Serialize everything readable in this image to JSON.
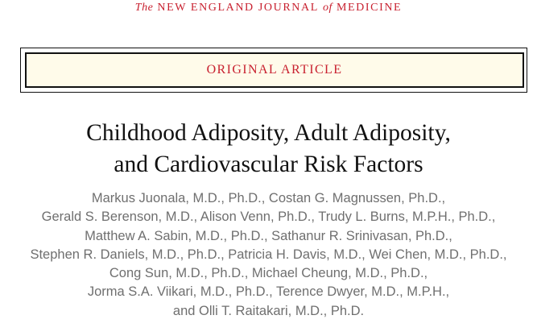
{
  "journal": {
    "the": "The",
    "name_part1": "NEW ENGLAND JOURNAL",
    "of": "of",
    "name_part2": "MEDICINE"
  },
  "article_type": "ORIGINAL ARTICLE",
  "title_lines": [
    "Childhood Adiposity, Adult Adiposity,",
    "and Cardiovascular Risk Factors"
  ],
  "author_lines": [
    "Markus Juonala, M.D., Ph.D., Costan G. Magnussen, Ph.D.,",
    "Gerald S. Berenson, M.D., Alison Venn, Ph.D., Trudy L. Burns, M.P.H., Ph.D.,",
    "Matthew A. Sabin, M.D., Ph.D., Sathanur R. Srinivasan, Ph.D.,",
    "Stephen R. Daniels, M.D., Ph.D., Patricia H. Davis, M.D., Wei Chen, M.D., Ph.D.,",
    "Cong Sun, M.D., Ph.D., Michael Cheung, M.D., Ph.D.,",
    "Jorma S.A. Viikari, M.D., Ph.D., Terence Dwyer, M.D., M.P.H.,",
    "and Olli T. Raitakari, M.D., Ph.D."
  ],
  "colors": {
    "accent": "#c8202f",
    "box_fill": "#fffbea",
    "author_text": "#6f6f6f"
  }
}
